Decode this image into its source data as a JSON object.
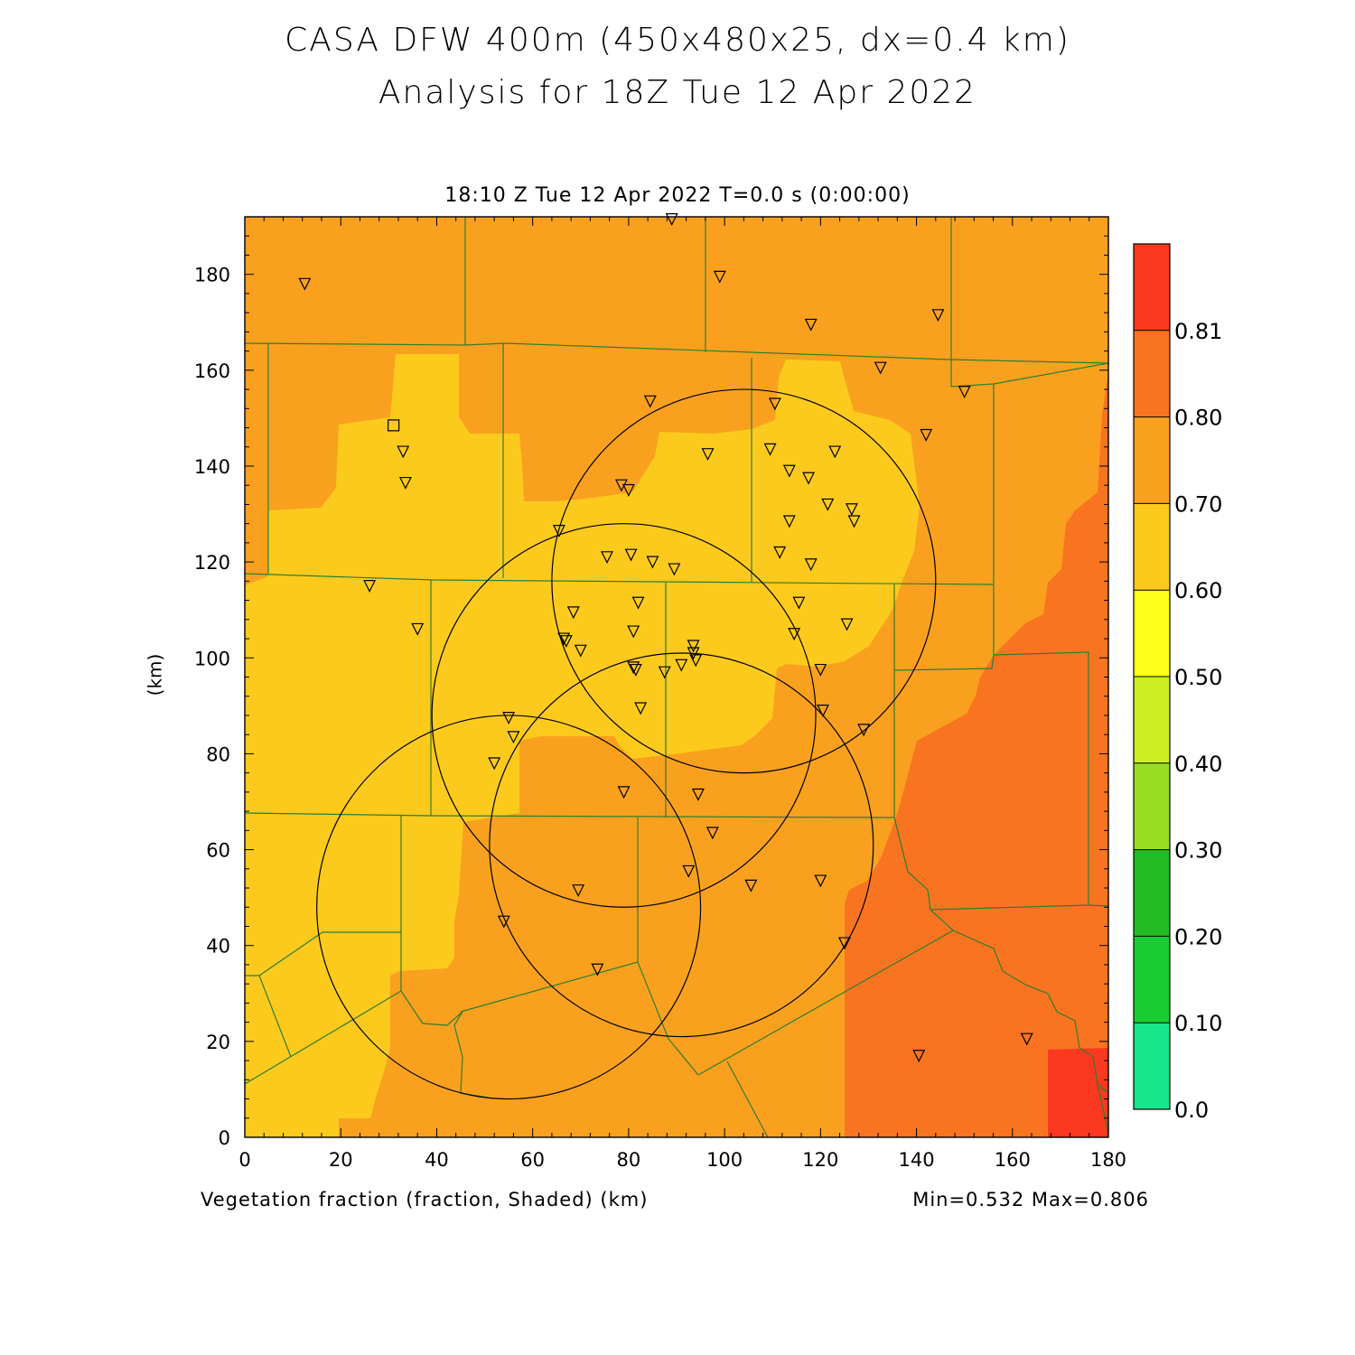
{
  "title_line1": "CASA DFW 400m (450x480x25, dx=0.4 km)",
  "title_line2": "Analysis for 18Z Tue 12 Apr 2022",
  "subtitle": "18:10 Z Tue 12 Apr 2022   T=0.0 s (0:00:00)",
  "footer_left": "Vegetation fraction (fraction, Shaded)  (km)",
  "footer_right": "Min=0.532 Max=0.806",
  "chart_data": {
    "type": "heatmap",
    "ylabel": "(km)",
    "xlim": [
      0,
      180
    ],
    "ylim": [
      0,
      192
    ],
    "x_ticks": [
      0,
      20,
      40,
      60,
      80,
      100,
      120,
      140,
      160,
      180
    ],
    "y_ticks": [
      0,
      20,
      40,
      60,
      80,
      100,
      120,
      140,
      160,
      180
    ],
    "colorbar": {
      "labels": [
        "0.0",
        "0.10",
        "0.20",
        "0.30",
        "0.40",
        "0.50",
        "0.60",
        "0.70",
        "0.80",
        "0.81"
      ],
      "colors": [
        "#19e68a",
        "#19cc33",
        "#22bb22",
        "#99dd22",
        "#ccee22",
        "#ffff1a",
        "#fcca1d",
        "#f9a11e",
        "#f97420",
        "#fb3921"
      ]
    },
    "radar_rings": [
      {
        "center": [
          79,
          88
        ],
        "radius": 40
      },
      {
        "center": [
          104,
          116
        ],
        "radius": 40
      },
      {
        "center": [
          91,
          61
        ],
        "radius": 40
      },
      {
        "center": [
          55,
          48
        ],
        "radius": 40
      }
    ],
    "square_marker": [
      31,
      148.5
    ],
    "stations": [
      [
        12.5,
        178
      ],
      [
        89,
        191.5
      ],
      [
        99,
        179.5
      ],
      [
        118,
        169.5
      ],
      [
        144.5,
        171.5
      ],
      [
        132.5,
        160.5
      ],
      [
        150,
        155.5
      ],
      [
        84.5,
        153.5
      ],
      [
        110.5,
        153
      ],
      [
        142,
        146.5
      ],
      [
        33,
        143
      ],
      [
        33.5,
        136.5
      ],
      [
        96.5,
        142.5
      ],
      [
        109.5,
        143.5
      ],
      [
        123,
        143
      ],
      [
        78.5,
        136
      ],
      [
        80,
        135
      ],
      [
        113.5,
        139
      ],
      [
        117.5,
        137.5
      ],
      [
        121.5,
        132
      ],
      [
        126.5,
        131
      ],
      [
        127,
        128.5
      ],
      [
        113.5,
        128.5
      ],
      [
        65.5,
        126.5
      ],
      [
        75.5,
        121
      ],
      [
        80.5,
        121.5
      ],
      [
        85,
        120
      ],
      [
        89.5,
        118.5
      ],
      [
        111.5,
        122
      ],
      [
        118,
        119.5
      ],
      [
        26,
        115
      ],
      [
        82,
        111.5
      ],
      [
        115.5,
        111.5
      ],
      [
        68.5,
        109.5
      ],
      [
        36,
        106
      ],
      [
        81,
        105.5
      ],
      [
        114.5,
        105
      ],
      [
        125.5,
        107
      ],
      [
        66.5,
        104
      ],
      [
        67,
        103.5
      ],
      [
        70,
        101.5
      ],
      [
        93.5,
        102.5
      ],
      [
        93.5,
        101
      ],
      [
        94,
        99.5
      ],
      [
        81,
        98
      ],
      [
        81.5,
        97.5
      ],
      [
        87.5,
        97
      ],
      [
        91,
        98.5
      ],
      [
        120,
        97.5
      ],
      [
        82.5,
        89.5
      ],
      [
        120.5,
        89
      ],
      [
        55,
        87.5
      ],
      [
        56,
        83.5
      ],
      [
        129,
        85
      ],
      [
        52,
        78
      ],
      [
        79,
        72
      ],
      [
        94.5,
        71.5
      ],
      [
        97.5,
        63.5
      ],
      [
        92.5,
        55.5
      ],
      [
        120,
        53.5
      ],
      [
        69.5,
        51.5
      ],
      [
        105.5,
        52.5
      ],
      [
        54,
        45
      ],
      [
        125,
        40.5
      ],
      [
        73.5,
        35
      ],
      [
        163,
        20.5
      ],
      [
        140.5,
        17
      ]
    ]
  }
}
